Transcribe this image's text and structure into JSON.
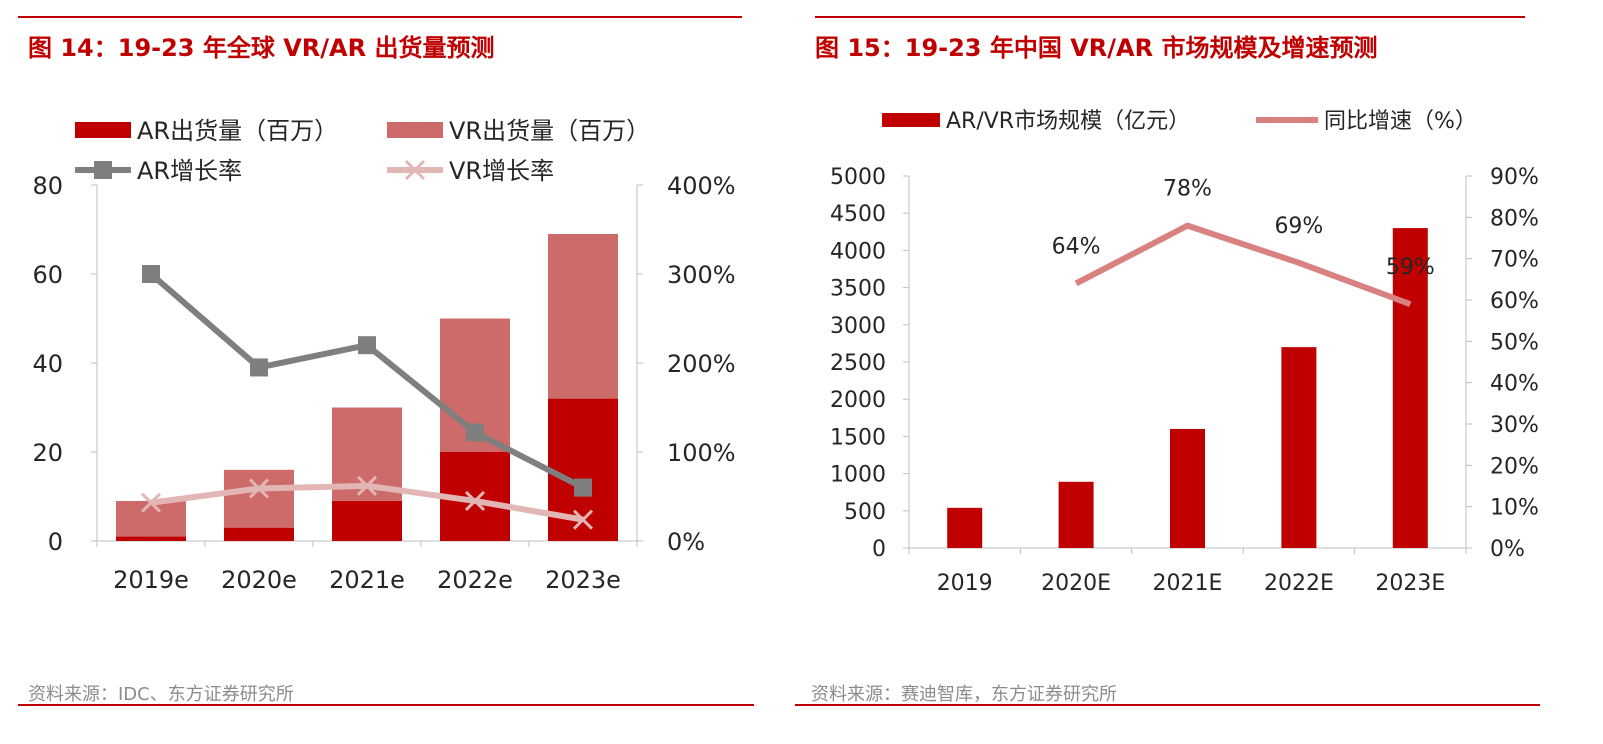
{
  "chart_data": [
    {
      "figure_title": "图 14：19-23 年全球 VR/AR 出货量预测",
      "type": "bar",
      "stacked": true,
      "categories": [
        "2019e",
        "2020e",
        "2021e",
        "2022e",
        "2023e"
      ],
      "series": [
        {
          "name": "AR出货量（百万）",
          "kind": "bar",
          "axis": "left",
          "color": "#c00000",
          "values": [
            1,
            3,
            9,
            20,
            32
          ]
        },
        {
          "name": "VR出货量（百万）",
          "kind": "bar",
          "axis": "left",
          "color": "#cd6a6a",
          "values": [
            8,
            13,
            21,
            30,
            37
          ]
        },
        {
          "name": "AR增长率",
          "kind": "line",
          "axis": "right",
          "color": "#7f7f7f",
          "marker": "square",
          "values": [
            300,
            195,
            220,
            122,
            60
          ]
        },
        {
          "name": "VR增长率",
          "kind": "line",
          "axis": "right",
          "color": "#e3b6b6",
          "marker": "x",
          "values": [
            43,
            59,
            62,
            45,
            24
          ]
        }
      ],
      "yleft": {
        "min": 0,
        "max": 80,
        "ticks": [
          "0",
          "20",
          "40",
          "60",
          "80"
        ]
      },
      "yright": {
        "min": 0,
        "max": 400,
        "ticks": [
          "0%",
          "100%",
          "200%",
          "300%",
          "400%"
        ]
      },
      "legend_position": "top",
      "grid": false,
      "source": "资料来源：IDC、东方证券研究所"
    },
    {
      "figure_title": "图 15：19-23 年中国 VR/AR 市场规模及增速预测",
      "type": "bar",
      "categories": [
        "2019",
        "2020E",
        "2021E",
        "2022E",
        "2023E"
      ],
      "series": [
        {
          "name": "AR/VR市场规模（亿元）",
          "kind": "bar",
          "axis": "left",
          "color": "#c00000",
          "values": [
            540,
            890,
            1600,
            2700,
            4300
          ]
        },
        {
          "name": "同比增速（%）",
          "kind": "line",
          "axis": "right",
          "color": "#d98080",
          "values": [
            null,
            64,
            78,
            69,
            59
          ],
          "labels": [
            "",
            "64%",
            "78%",
            "69%",
            "59%"
          ]
        }
      ],
      "yleft": {
        "min": 0,
        "max": 5000,
        "ticks": [
          "0",
          "500",
          "1000",
          "1500",
          "2000",
          "2500",
          "3000",
          "3500",
          "4000",
          "4500",
          "5000"
        ]
      },
      "yright": {
        "min": 0,
        "max": 90,
        "ticks": [
          "0%",
          "10%",
          "20%",
          "30%",
          "40%",
          "50%",
          "60%",
          "70%",
          "80%",
          "90%"
        ]
      },
      "legend_position": "top",
      "grid": false,
      "source": "资料来源：赛迪智库，东方证券研究所"
    }
  ]
}
